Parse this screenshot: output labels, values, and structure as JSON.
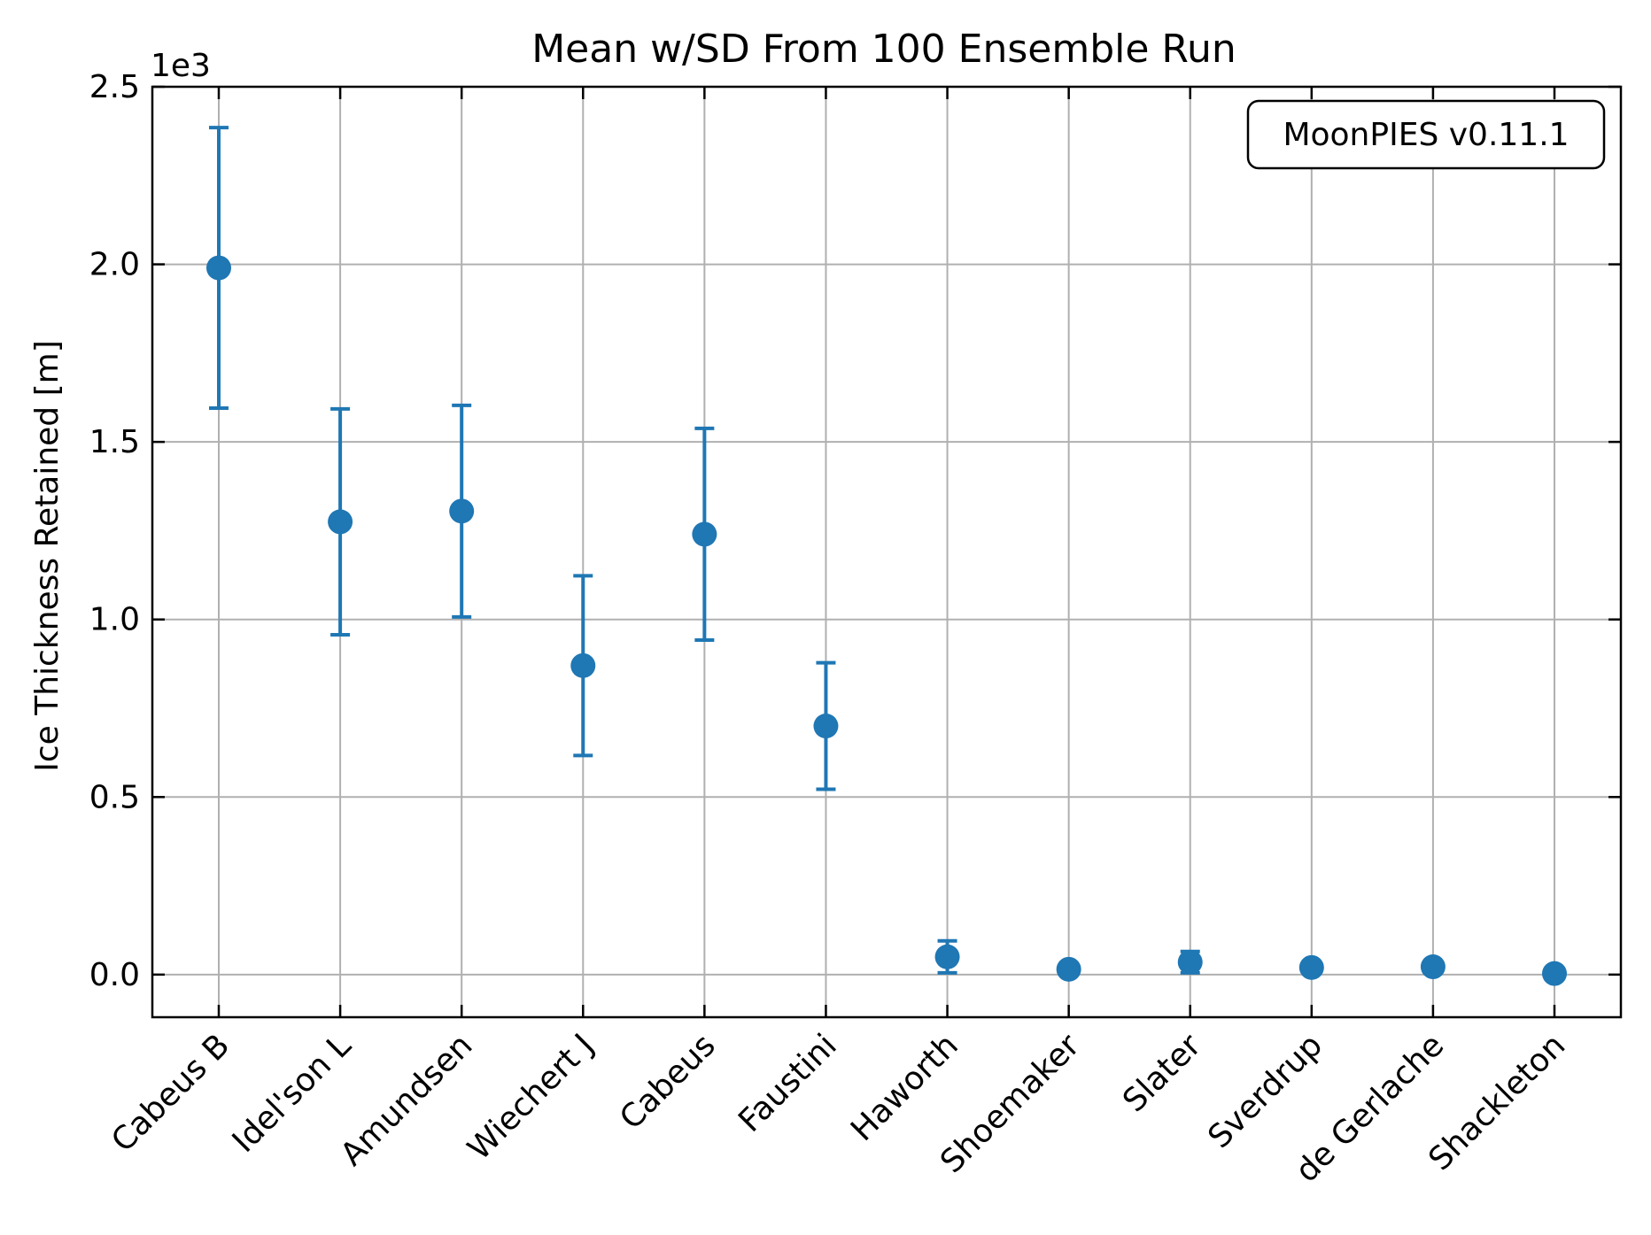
{
  "chart_data": {
    "type": "scatter",
    "title": "Mean w/SD From 100 Ensemble Run",
    "xlabel": "",
    "ylabel": "Ice Thickness Retained [m]",
    "y_offset_label": "1e3",
    "y_scale_factor": 1000,
    "ylim": [
      -120,
      2500
    ],
    "yticks": [
      0,
      500,
      1000,
      1500,
      2000,
      2500
    ],
    "ytick_labels": [
      "0.0",
      "0.5",
      "1.0",
      "1.5",
      "2.0",
      "2.5"
    ],
    "categories": [
      "Cabeus B",
      "Idel'son L",
      "Amundsen",
      "Wiechert J",
      "Cabeus",
      "Faustini",
      "Haworth",
      "Shoemaker",
      "Slater",
      "Sverdrup",
      "de Gerlache",
      "Shackleton"
    ],
    "series": [
      {
        "values": [
          1990,
          1275,
          1305,
          870,
          1240,
          700,
          50,
          15,
          35,
          20,
          22,
          3
        ],
        "error": [
          395,
          318,
          298,
          253,
          298,
          178,
          45,
          5,
          30,
          15,
          15,
          2
        ]
      }
    ],
    "annotation": "MoonPIES v0.11.1",
    "grid": true,
    "marker_color": "#1f77b4"
  }
}
